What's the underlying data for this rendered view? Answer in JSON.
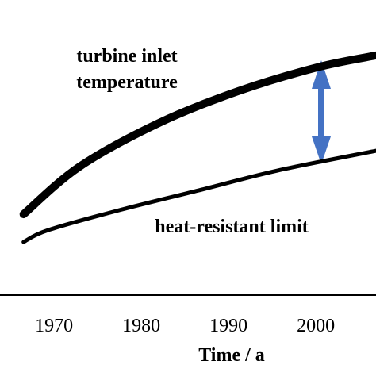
{
  "chart_data": {
    "type": "line",
    "x_label": "Time / a",
    "annotations": [
      "turbine inlet",
      "temperature",
      "heat-resistant limit"
    ],
    "xlim": [
      1963.8,
      2006.9
    ],
    "xticks": [
      1970,
      1980,
      1990,
      2000
    ],
    "ylim": [
      0,
      100
    ],
    "series": [
      {
        "name": "turbine inlet temperature",
        "color": "#000000",
        "x": [
          1966.5,
          1972.9,
          1982.0,
          1991.1,
          2000.2,
          2006.9
        ],
        "values": [
          27.4,
          43.5,
          58.3,
          69.1,
          77.2,
          81.2
        ]
      },
      {
        "name": "heat-resistant limit",
        "color": "#000000",
        "x": [
          1966.5,
          1969.3,
          1977.5,
          1986.6,
          1995.6,
          2006.9
        ],
        "values": [
          18.0,
          22.0,
          28.8,
          35.5,
          42.2,
          48.9
        ]
      }
    ]
  }
}
